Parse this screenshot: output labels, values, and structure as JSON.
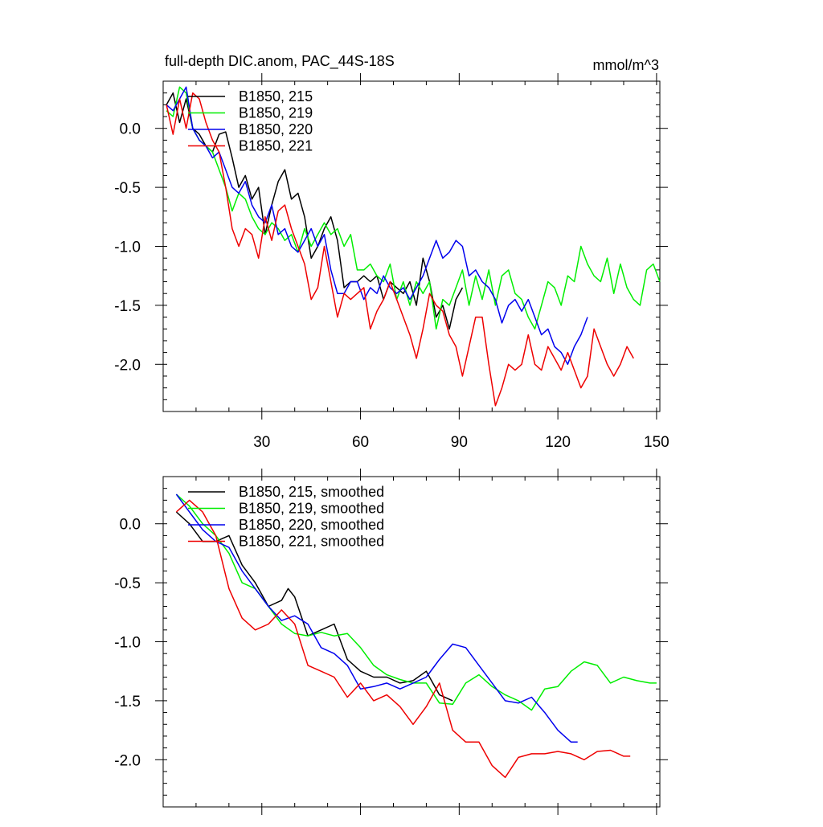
{
  "figure": {
    "title": "full-depth DIC.anom, PAC_44S-18S",
    "units": "mmol/m^3"
  },
  "chart_data": [
    {
      "type": "line",
      "panel": "top",
      "title": "full-depth DIC.anom, PAC_44S-18S",
      "units_label": "mmol/m^3",
      "xlim": [
        0,
        151
      ],
      "ylim": [
        -2.4,
        0.4
      ],
      "xticks": [
        30,
        60,
        90,
        120,
        150
      ],
      "yticks": [
        0.0,
        -0.5,
        -1.0,
        -1.5,
        -2.0
      ],
      "ytick_labels": [
        "0.0",
        "-0.5",
        "-1.0",
        "-1.5",
        "-2.0"
      ],
      "grid": false,
      "legend_position": "top-left",
      "series": [
        {
          "name": "B1850, 215",
          "color": "#000000",
          "x": [
            1,
            3,
            5,
            7,
            9,
            11,
            13,
            15,
            17,
            19,
            21,
            23,
            25,
            27,
            29,
            31,
            33,
            35,
            37,
            39,
            41,
            43,
            45,
            47,
            49,
            51,
            53,
            55,
            57,
            59,
            61,
            63,
            65,
            67,
            69,
            71,
            73,
            75,
            77,
            79,
            81,
            83,
            85,
            87,
            89,
            91
          ],
          "y": [
            0.2,
            0.3,
            0.05,
            0.25,
            0.0,
            -0.05,
            -0.15,
            -0.2,
            -0.05,
            -0.03,
            -0.25,
            -0.5,
            -0.4,
            -0.6,
            -0.5,
            -0.9,
            -0.65,
            -0.45,
            -0.35,
            -0.6,
            -0.55,
            -0.75,
            -1.1,
            -1.0,
            -0.85,
            -0.75,
            -0.95,
            -1.35,
            -1.3,
            -1.3,
            -1.25,
            -1.3,
            -1.25,
            -1.45,
            -1.3,
            -1.35,
            -1.4,
            -1.3,
            -1.5,
            -1.1,
            -1.3,
            -1.6,
            -1.5,
            -1.7,
            -1.45,
            -1.35
          ]
        },
        {
          "name": "B1850, 219",
          "color": "#00ee00",
          "x": [
            1,
            3,
            5,
            7,
            9,
            11,
            13,
            15,
            17,
            19,
            21,
            23,
            25,
            27,
            29,
            31,
            33,
            35,
            37,
            39,
            41,
            43,
            45,
            47,
            49,
            51,
            53,
            55,
            57,
            59,
            61,
            63,
            65,
            67,
            69,
            71,
            73,
            75,
            77,
            79,
            81,
            83,
            85,
            87,
            89,
            91,
            93,
            95,
            97,
            99,
            101,
            103,
            105,
            107,
            109,
            111,
            113,
            115,
            117,
            119,
            121,
            123,
            125,
            127,
            129,
            131,
            133,
            135,
            137,
            139,
            141,
            143,
            145,
            147,
            149,
            151
          ],
          "y": [
            0.15,
            0.1,
            0.35,
            0.3,
            0.0,
            -0.1,
            -0.15,
            -0.2,
            -0.35,
            -0.5,
            -0.7,
            -0.55,
            -0.6,
            -0.75,
            -0.85,
            -0.9,
            -0.8,
            -0.85,
            -0.95,
            -0.9,
            -1.05,
            -0.85,
            -1.0,
            -0.9,
            -0.8,
            -0.9,
            -0.85,
            -1.0,
            -0.9,
            -1.2,
            -1.2,
            -1.15,
            -1.25,
            -1.3,
            -1.15,
            -1.45,
            -1.3,
            -1.5,
            -1.3,
            -1.4,
            -1.3,
            -1.7,
            -1.45,
            -1.5,
            -1.35,
            -1.2,
            -1.5,
            -1.25,
            -1.45,
            -1.2,
            -1.5,
            -1.25,
            -1.2,
            -1.4,
            -1.45,
            -1.6,
            -1.7,
            -1.5,
            -1.3,
            -1.35,
            -1.5,
            -1.25,
            -1.3,
            -1.0,
            -1.15,
            -1.25,
            -1.3,
            -1.1,
            -1.4,
            -1.15,
            -1.35,
            -1.45,
            -1.5,
            -1.2,
            -1.15,
            -1.3
          ]
        },
        {
          "name": "B1850, 220",
          "color": "#0000ee",
          "x": [
            1,
            3,
            5,
            7,
            9,
            11,
            13,
            15,
            17,
            19,
            21,
            23,
            25,
            27,
            29,
            31,
            33,
            35,
            37,
            39,
            41,
            43,
            45,
            47,
            49,
            51,
            53,
            55,
            57,
            59,
            61,
            63,
            65,
            67,
            69,
            71,
            73,
            75,
            77,
            79,
            81,
            83,
            85,
            87,
            89,
            91,
            93,
            95,
            97,
            99,
            101,
            103,
            105,
            107,
            109,
            111,
            113,
            115,
            117,
            119,
            121,
            123,
            125,
            127,
            129
          ],
          "y": [
            0.2,
            0.15,
            0.25,
            0.35,
            0.0,
            -0.1,
            -0.15,
            -0.25,
            -0.2,
            -0.35,
            -0.5,
            -0.55,
            -0.45,
            -0.65,
            -0.75,
            -0.8,
            -0.65,
            -0.9,
            -0.85,
            -1.0,
            -1.05,
            -0.95,
            -0.85,
            -1.0,
            -0.9,
            -1.2,
            -1.4,
            -1.4,
            -1.3,
            -1.3,
            -1.45,
            -1.35,
            -1.4,
            -1.25,
            -1.35,
            -1.4,
            -1.35,
            -1.45,
            -1.35,
            -1.25,
            -1.1,
            -0.95,
            -1.1,
            -1.05,
            -0.95,
            -1.0,
            -1.25,
            -1.2,
            -1.3,
            -1.35,
            -1.45,
            -1.65,
            -1.5,
            -1.45,
            -1.55,
            -1.45,
            -1.6,
            -1.75,
            -1.7,
            -1.85,
            -1.9,
            -2.0,
            -1.85,
            -1.75,
            -1.6
          ]
        },
        {
          "name": "B1850, 221",
          "color": "#ee0000",
          "x": [
            1,
            3,
            5,
            7,
            9,
            11,
            13,
            15,
            17,
            19,
            21,
            23,
            25,
            27,
            29,
            31,
            33,
            35,
            37,
            39,
            41,
            43,
            45,
            47,
            49,
            51,
            53,
            55,
            57,
            59,
            61,
            63,
            65,
            67,
            69,
            71,
            73,
            75,
            77,
            79,
            81,
            83,
            85,
            87,
            89,
            91,
            93,
            95,
            97,
            99,
            101,
            103,
            105,
            107,
            109,
            111,
            113,
            115,
            117,
            119,
            121,
            123,
            125,
            127,
            129,
            131,
            133,
            135,
            137,
            139,
            141,
            143
          ],
          "y": [
            0.2,
            -0.05,
            0.25,
            0.0,
            0.3,
            0.25,
            0.05,
            -0.1,
            -0.2,
            -0.5,
            -0.85,
            -1.0,
            -0.85,
            -0.9,
            -1.1,
            -0.75,
            -0.95,
            -0.7,
            -0.65,
            -0.85,
            -1.0,
            -1.15,
            -1.45,
            -1.35,
            -1.0,
            -1.3,
            -1.6,
            -1.4,
            -1.45,
            -1.4,
            -1.35,
            -1.7,
            -1.55,
            -1.45,
            -1.3,
            -1.45,
            -1.6,
            -1.75,
            -1.95,
            -1.7,
            -1.4,
            -1.5,
            -1.55,
            -1.75,
            -1.85,
            -2.1,
            -1.85,
            -1.6,
            -1.6,
            -2.0,
            -2.35,
            -2.2,
            -2.0,
            -2.05,
            -2.0,
            -1.75,
            -2.0,
            -2.05,
            -1.85,
            -1.95,
            -2.05,
            -1.9,
            -2.05,
            -2.2,
            -2.1,
            -1.7,
            -1.85,
            -2.0,
            -2.1,
            -2.0,
            -1.85,
            -1.95
          ]
        }
      ]
    },
    {
      "type": "line",
      "panel": "bottom",
      "xlim": [
        0,
        151
      ],
      "ylim": [
        -2.4,
        0.4
      ],
      "xticks": [
        30,
        60,
        90,
        120,
        150
      ],
      "yticks": [
        0.0,
        -0.5,
        -1.0,
        -1.5,
        -2.0
      ],
      "ytick_labels": [
        "0.0",
        "-0.5",
        "-1.0",
        "-1.5",
        "-2.0"
      ],
      "grid": false,
      "legend_position": "top-left",
      "series": [
        {
          "name": "B1850, 215, smoothed",
          "color": "#000000",
          "x": [
            4,
            8,
            12,
            16,
            20,
            24,
            28,
            32,
            36,
            38,
            40,
            44,
            48,
            52,
            56,
            60,
            64,
            68,
            72,
            76,
            80,
            84,
            88
          ],
          "y": [
            0.1,
            0.0,
            -0.15,
            -0.15,
            -0.1,
            -0.35,
            -0.5,
            -0.7,
            -0.65,
            -0.55,
            -0.62,
            -0.95,
            -0.9,
            -0.85,
            -1.15,
            -1.25,
            -1.3,
            -1.3,
            -1.35,
            -1.33,
            -1.25,
            -1.45,
            -1.5
          ]
        },
        {
          "name": "B1850, 219, smoothed",
          "color": "#00ee00",
          "x": [
            4,
            8,
            12,
            16,
            20,
            24,
            28,
            32,
            36,
            40,
            44,
            48,
            52,
            56,
            60,
            64,
            68,
            72,
            76,
            80,
            84,
            88,
            92,
            96,
            100,
            104,
            108,
            112,
            116,
            120,
            124,
            128,
            132,
            136,
            140,
            144,
            148,
            150
          ],
          "y": [
            0.25,
            0.15,
            0.0,
            -0.1,
            -0.25,
            -0.5,
            -0.55,
            -0.7,
            -0.85,
            -0.93,
            -0.95,
            -0.92,
            -0.95,
            -0.93,
            -1.05,
            -1.2,
            -1.28,
            -1.32,
            -1.35,
            -1.35,
            -1.52,
            -1.53,
            -1.35,
            -1.28,
            -1.38,
            -1.45,
            -1.5,
            -1.58,
            -1.4,
            -1.38,
            -1.25,
            -1.17,
            -1.2,
            -1.35,
            -1.3,
            -1.33,
            -1.35,
            -1.35
          ]
        },
        {
          "name": "B1850, 220, smoothed",
          "color": "#0000ee",
          "x": [
            4,
            8,
            12,
            16,
            20,
            24,
            28,
            32,
            36,
            40,
            44,
            48,
            52,
            56,
            60,
            64,
            68,
            72,
            76,
            80,
            84,
            88,
            92,
            96,
            100,
            104,
            108,
            112,
            116,
            120,
            124,
            126
          ],
          "y": [
            0.25,
            0.1,
            -0.05,
            -0.15,
            -0.2,
            -0.4,
            -0.55,
            -0.7,
            -0.82,
            -0.78,
            -0.85,
            -1.05,
            -1.1,
            -1.2,
            -1.4,
            -1.38,
            -1.35,
            -1.4,
            -1.35,
            -1.3,
            -1.15,
            -1.02,
            -1.05,
            -1.2,
            -1.35,
            -1.5,
            -1.52,
            -1.47,
            -1.6,
            -1.75,
            -1.85,
            -1.85
          ]
        },
        {
          "name": "B1850, 221, smoothed",
          "color": "#ee0000",
          "x": [
            4,
            8,
            12,
            16,
            20,
            24,
            28,
            32,
            36,
            40,
            44,
            48,
            52,
            56,
            60,
            64,
            68,
            72,
            76,
            80,
            84,
            88,
            92,
            96,
            100,
            104,
            108,
            112,
            116,
            120,
            124,
            128,
            132,
            136,
            140,
            142
          ],
          "y": [
            0.1,
            0.2,
            0.1,
            -0.1,
            -0.55,
            -0.8,
            -0.9,
            -0.85,
            -0.73,
            -0.85,
            -1.2,
            -1.25,
            -1.3,
            -1.47,
            -1.35,
            -1.5,
            -1.45,
            -1.55,
            -1.7,
            -1.55,
            -1.35,
            -1.75,
            -1.85,
            -1.85,
            -2.05,
            -2.15,
            -1.98,
            -1.95,
            -1.95,
            -1.93,
            -1.95,
            -2.0,
            -1.93,
            -1.92,
            -1.97,
            -1.97
          ]
        }
      ]
    }
  ]
}
